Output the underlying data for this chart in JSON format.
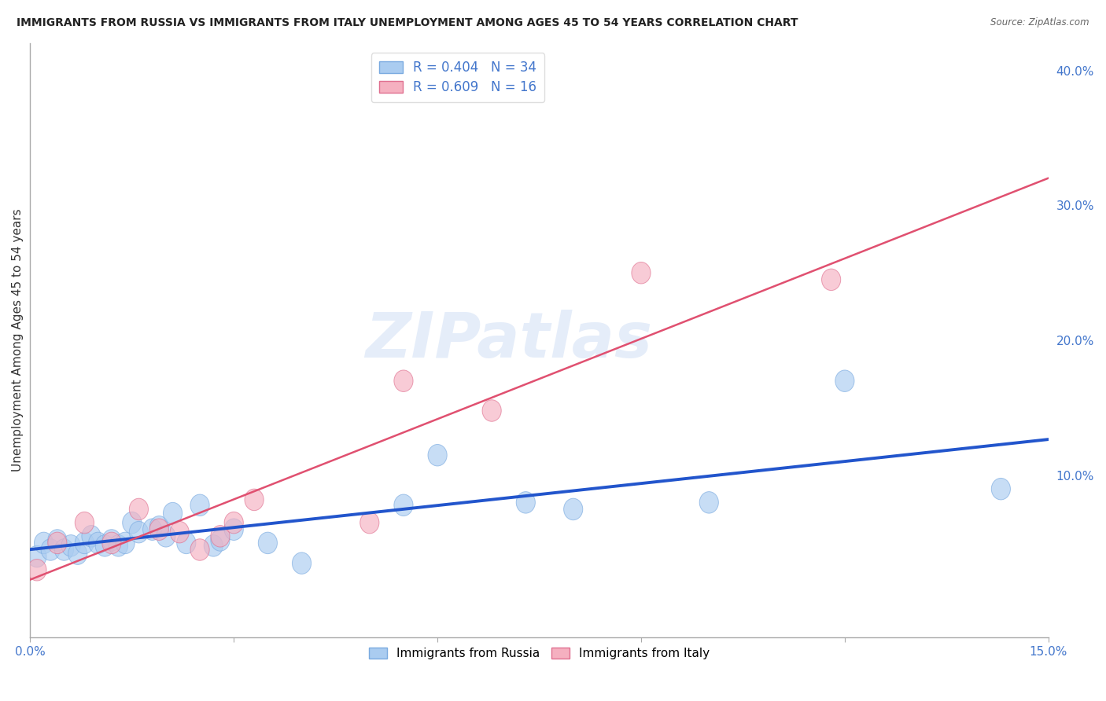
{
  "title": "IMMIGRANTS FROM RUSSIA VS IMMIGRANTS FROM ITALY UNEMPLOYMENT AMONG AGES 45 TO 54 YEARS CORRELATION CHART",
  "source": "Source: ZipAtlas.com",
  "ylabel": "Unemployment Among Ages 45 to 54 years",
  "xlim": [
    0.0,
    0.15
  ],
  "ylim": [
    -0.02,
    0.42
  ],
  "right_yticks": [
    0.0,
    0.1,
    0.2,
    0.3,
    0.4
  ],
  "right_yticklabels": [
    "",
    "10.0%",
    "20.0%",
    "30.0%",
    "40.0%"
  ],
  "xticks": [
    0.0,
    0.03,
    0.06,
    0.09,
    0.12,
    0.15
  ],
  "xticklabels": [
    "0.0%",
    "",
    "",
    "",
    "",
    "15.0%"
  ],
  "russia_R": 0.404,
  "russia_N": 34,
  "italy_R": 0.609,
  "italy_N": 16,
  "russia_color": "#aaccf0",
  "russia_edge_color": "#7aaae0",
  "italy_color": "#f5b0c0",
  "italy_edge_color": "#e07090",
  "russia_line_color": "#2255cc",
  "italy_line_color": "#e05070",
  "background_color": "#ffffff",
  "watermark_text": "ZIPatlas",
  "watermark_color": "#d0dff5",
  "grid_color": "#cccccc",
  "tick_color": "#4477cc",
  "title_color": "#222222",
  "russia_x": [
    0.001,
    0.002,
    0.003,
    0.004,
    0.005,
    0.006,
    0.007,
    0.008,
    0.009,
    0.01,
    0.011,
    0.012,
    0.013,
    0.014,
    0.015,
    0.016,
    0.018,
    0.019,
    0.02,
    0.021,
    0.023,
    0.025,
    0.027,
    0.028,
    0.03,
    0.035,
    0.04,
    0.055,
    0.06,
    0.073,
    0.08,
    0.1,
    0.12,
    0.143
  ],
  "russia_y": [
    0.04,
    0.05,
    0.045,
    0.052,
    0.045,
    0.048,
    0.042,
    0.05,
    0.055,
    0.05,
    0.048,
    0.052,
    0.048,
    0.05,
    0.065,
    0.058,
    0.06,
    0.062,
    0.055,
    0.072,
    0.05,
    0.078,
    0.048,
    0.052,
    0.06,
    0.05,
    0.035,
    0.078,
    0.115,
    0.08,
    0.075,
    0.08,
    0.17,
    0.09
  ],
  "italy_x": [
    0.001,
    0.004,
    0.008,
    0.012,
    0.016,
    0.019,
    0.022,
    0.025,
    0.028,
    0.03,
    0.033,
    0.05,
    0.055,
    0.068,
    0.09,
    0.118
  ],
  "italy_y": [
    0.03,
    0.05,
    0.065,
    0.05,
    0.075,
    0.06,
    0.058,
    0.045,
    0.055,
    0.065,
    0.082,
    0.065,
    0.17,
    0.148,
    0.25,
    0.245
  ]
}
